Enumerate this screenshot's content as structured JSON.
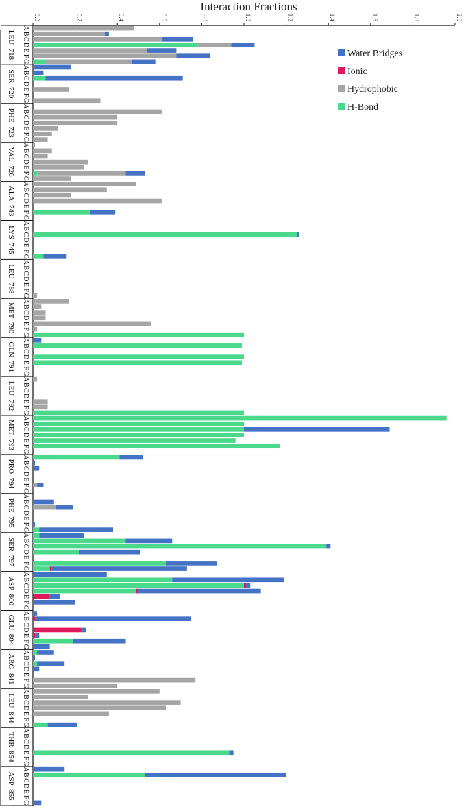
{
  "chart_data": {
    "type": "bar",
    "orientation": "horizontal-stacked",
    "title": "Interaction Fractions",
    "xlim": [
      0,
      2.0
    ],
    "x_ticks": [
      "0.0",
      "0.2",
      "0.4",
      "0.6",
      "0.8",
      "1.0",
      "1.2",
      "1.4",
      "1.6",
      "1.8",
      "2.0"
    ],
    "pose_labels": [
      "A",
      "B",
      "C",
      "D",
      "E",
      "F",
      "G"
    ],
    "legend_placement": "top-right",
    "series": [
      {
        "name": "Water Bridges",
        "color": "#4472c4"
      },
      {
        "name": "Ionic",
        "color": "#e0185c"
      },
      {
        "name": "Hydrophobic",
        "color": "#a5a5a5"
      },
      {
        "name": "H-Bond",
        "color": "#4ad98a"
      }
    ],
    "stack_order": [
      "H-Bond",
      "Ionic",
      "Hydrophobic",
      "Water Bridges"
    ],
    "residues": [
      {
        "name": "LEU_718",
        "bars": [
          {
            "hb": 0,
            "ion": 0,
            "hyd": 0.48,
            "wb": 0
          },
          {
            "hb": 0,
            "ion": 0,
            "hyd": 0.34,
            "wb": 0.02
          },
          {
            "hb": 0,
            "ion": 0,
            "hyd": 0.61,
            "wb": 0.15
          },
          {
            "hb": 0.78,
            "ion": 0,
            "hyd": 0.16,
            "wb": 0.11
          },
          {
            "hb": 0,
            "ion": 0,
            "hyd": 0.54,
            "wb": 0.14
          },
          {
            "hb": 0,
            "ion": 0,
            "hyd": 0.68,
            "wb": 0.16
          },
          {
            "hb": 0.06,
            "ion": 0,
            "hyd": 0.41,
            "wb": 0.11
          }
        ]
      },
      {
        "name": "SER_720",
        "bars": [
          {
            "hb": 0,
            "ion": 0,
            "hyd": 0,
            "wb": 0.18
          },
          {
            "hb": 0,
            "ion": 0,
            "hyd": 0,
            "wb": 0.05
          },
          {
            "hb": 0.06,
            "ion": 0,
            "hyd": 0,
            "wb": 0.65
          },
          {
            "hb": 0,
            "ion": 0,
            "hyd": 0,
            "wb": 0
          },
          {
            "hb": 0,
            "ion": 0,
            "hyd": 0.17,
            "wb": 0
          },
          {
            "hb": 0,
            "ion": 0,
            "hyd": 0,
            "wb": 0
          },
          {
            "hb": 0,
            "ion": 0,
            "hyd": 0.32,
            "wb": 0
          }
        ]
      },
      {
        "name": "PHE_723",
        "bars": [
          {
            "hb": 0,
            "ion": 0,
            "hyd": 0,
            "wb": 0
          },
          {
            "hb": 0,
            "ion": 0,
            "hyd": 0.61,
            "wb": 0
          },
          {
            "hb": 0,
            "ion": 0,
            "hyd": 0.4,
            "wb": 0
          },
          {
            "hb": 0,
            "ion": 0,
            "hyd": 0.4,
            "wb": 0
          },
          {
            "hb": 0,
            "ion": 0,
            "hyd": 0.12,
            "wb": 0
          },
          {
            "hb": 0,
            "ion": 0,
            "hyd": 0.09,
            "wb": 0
          },
          {
            "hb": 0,
            "ion": 0,
            "hyd": 0.07,
            "wb": 0
          }
        ]
      },
      {
        "name": "VAL_726",
        "bars": [
          {
            "hb": 0,
            "ion": 0,
            "hyd": 0.01,
            "wb": 0
          },
          {
            "hb": 0,
            "ion": 0,
            "hyd": 0.09,
            "wb": 0
          },
          {
            "hb": 0,
            "ion": 0,
            "hyd": 0.07,
            "wb": 0
          },
          {
            "hb": 0,
            "ion": 0,
            "hyd": 0.26,
            "wb": 0
          },
          {
            "hb": 0,
            "ion": 0,
            "hyd": 0.24,
            "wb": 0
          },
          {
            "hb": 0.02,
            "ion": 0,
            "hyd": 0.42,
            "wb": 0.09
          },
          {
            "hb": 0,
            "ion": 0,
            "hyd": 0.18,
            "wb": 0
          }
        ]
      },
      {
        "name": "ALA_743",
        "bars": [
          {
            "hb": 0,
            "ion": 0,
            "hyd": 0.49,
            "wb": 0
          },
          {
            "hb": 0,
            "ion": 0,
            "hyd": 0.35,
            "wb": 0
          },
          {
            "hb": 0,
            "ion": 0,
            "hyd": 0.18,
            "wb": 0
          },
          {
            "hb": 0,
            "ion": 0,
            "hyd": 0.61,
            "wb": 0
          },
          {
            "hb": 0,
            "ion": 0,
            "hyd": 0,
            "wb": 0
          },
          {
            "hb": 0.27,
            "ion": 0,
            "hyd": 0,
            "wb": 0.12
          },
          {
            "hb": 0,
            "ion": 0,
            "hyd": 0,
            "wb": 0
          }
        ]
      },
      {
        "name": "LYS_745",
        "bars": [
          {
            "hb": 0,
            "ion": 0,
            "hyd": 0,
            "wb": 0
          },
          {
            "hb": 0,
            "ion": 0,
            "hyd": 0,
            "wb": 0
          },
          {
            "hb": 1.25,
            "ion": 0,
            "hyd": 0,
            "wb": 0.01
          },
          {
            "hb": 0,
            "ion": 0,
            "hyd": 0,
            "wb": 0
          },
          {
            "hb": 0,
            "ion": 0,
            "hyd": 0,
            "wb": 0
          },
          {
            "hb": 0,
            "ion": 0,
            "hyd": 0,
            "wb": 0
          },
          {
            "hb": 0.05,
            "ion": 0,
            "hyd": 0,
            "wb": 0.11
          }
        ]
      },
      {
        "name": "LEU_788",
        "bars": [
          {
            "hb": 0,
            "ion": 0,
            "hyd": 0,
            "wb": 0
          },
          {
            "hb": 0,
            "ion": 0,
            "hyd": 0,
            "wb": 0
          },
          {
            "hb": 0,
            "ion": 0,
            "hyd": 0,
            "wb": 0
          },
          {
            "hb": 0,
            "ion": 0,
            "hyd": 0,
            "wb": 0
          },
          {
            "hb": 0,
            "ion": 0,
            "hyd": 0,
            "wb": 0
          },
          {
            "hb": 0,
            "ion": 0,
            "hyd": 0,
            "wb": 0
          },
          {
            "hb": 0,
            "ion": 0,
            "hyd": 0.02,
            "wb": 0
          }
        ]
      },
      {
        "name": "MET_790",
        "bars": [
          {
            "hb": 0,
            "ion": 0,
            "hyd": 0.17,
            "wb": 0
          },
          {
            "hb": 0,
            "ion": 0,
            "hyd": 0.04,
            "wb": 0
          },
          {
            "hb": 0,
            "ion": 0,
            "hyd": 0.06,
            "wb": 0
          },
          {
            "hb": 0,
            "ion": 0,
            "hyd": 0.06,
            "wb": 0
          },
          {
            "hb": 0,
            "ion": 0,
            "hyd": 0.56,
            "wb": 0
          },
          {
            "hb": 0,
            "ion": 0,
            "hyd": 0.02,
            "wb": 0
          },
          {
            "hb": 1.0,
            "ion": 0,
            "hyd": 0,
            "wb": 0
          }
        ]
      },
      {
        "name": "GLN_791",
        "bars": [
          {
            "hb": 0,
            "ion": 0,
            "hyd": 0,
            "wb": 0.04
          },
          {
            "hb": 0.99,
            "ion": 0,
            "hyd": 0,
            "wb": 0
          },
          {
            "hb": 0,
            "ion": 0,
            "hyd": 0,
            "wb": 0
          },
          {
            "hb": 1.0,
            "ion": 0,
            "hyd": 0,
            "wb": 0
          },
          {
            "hb": 0.99,
            "ion": 0,
            "hyd": 0,
            "wb": 0
          },
          {
            "hb": 0,
            "ion": 0,
            "hyd": 0,
            "wb": 0
          },
          {
            "hb": 0,
            "ion": 0,
            "hyd": 0,
            "wb": 0
          }
        ]
      },
      {
        "name": "LEU_792",
        "bars": [
          {
            "hb": 0,
            "ion": 0,
            "hyd": 0.02,
            "wb": 0
          },
          {
            "hb": 0,
            "ion": 0,
            "hyd": 0,
            "wb": 0
          },
          {
            "hb": 0,
            "ion": 0,
            "hyd": 0,
            "wb": 0
          },
          {
            "hb": 0,
            "ion": 0,
            "hyd": 0,
            "wb": 0
          },
          {
            "hb": 0,
            "ion": 0,
            "hyd": 0.07,
            "wb": 0
          },
          {
            "hb": 0,
            "ion": 0,
            "hyd": 0.07,
            "wb": 0
          },
          {
            "hb": 1.0,
            "ion": 0,
            "hyd": 0,
            "wb": 0
          }
        ]
      },
      {
        "name": "MET_793",
        "bars": [
          {
            "hb": 1.96,
            "ion": 0,
            "hyd": 0,
            "wb": 0
          },
          {
            "hb": 1.0,
            "ion": 0,
            "hyd": 0,
            "wb": 0
          },
          {
            "hb": 1.0,
            "ion": 0,
            "hyd": 0,
            "wb": 0.69
          },
          {
            "hb": 1.0,
            "ion": 0,
            "hyd": 0,
            "wb": 0
          },
          {
            "hb": 0.96,
            "ion": 0,
            "hyd": 0,
            "wb": 0
          },
          {
            "hb": 1.17,
            "ion": 0,
            "hyd": 0,
            "wb": 0
          },
          {
            "hb": 0,
            "ion": 0,
            "hyd": 0,
            "wb": 0
          }
        ]
      },
      {
        "name": "PRO_794",
        "bars": [
          {
            "hb": 0.41,
            "ion": 0,
            "hyd": 0,
            "wb": 0.11
          },
          {
            "hb": 0,
            "ion": 0,
            "hyd": 0,
            "wb": 0.01
          },
          {
            "hb": 0,
            "ion": 0,
            "hyd": 0,
            "wb": 0.03
          },
          {
            "hb": 0,
            "ion": 0,
            "hyd": 0,
            "wb": 0
          },
          {
            "hb": 0,
            "ion": 0,
            "hyd": 0,
            "wb": 0
          },
          {
            "hb": 0,
            "ion": 0,
            "hyd": 0.02,
            "wb": 0.03
          },
          {
            "hb": 0,
            "ion": 0,
            "hyd": 0,
            "wb": 0
          }
        ]
      },
      {
        "name": "PHE_795",
        "bars": [
          {
            "hb": 0,
            "ion": 0,
            "hyd": 0,
            "wb": 0
          },
          {
            "hb": 0,
            "ion": 0,
            "hyd": 0,
            "wb": 0.1
          },
          {
            "hb": 0,
            "ion": 0,
            "hyd": 0.11,
            "wb": 0.08
          },
          {
            "hb": 0,
            "ion": 0,
            "hyd": 0,
            "wb": 0
          },
          {
            "hb": 0,
            "ion": 0,
            "hyd": 0,
            "wb": 0
          },
          {
            "hb": 0,
            "ion": 0,
            "hyd": 0,
            "wb": 0.01
          },
          {
            "hb": 0.03,
            "ion": 0,
            "hyd": 0,
            "wb": 0.35
          }
        ]
      },
      {
        "name": "SER_797",
        "bars": [
          {
            "hb": 0.03,
            "ion": 0,
            "hyd": 0,
            "wb": 0.21
          },
          {
            "hb": 0.44,
            "ion": 0,
            "hyd": 0,
            "wb": 0.22
          },
          {
            "hb": 1.39,
            "ion": 0,
            "hyd": 0,
            "wb": 0.02
          },
          {
            "hb": 0.22,
            "ion": 0,
            "hyd": 0,
            "wb": 0.29
          },
          {
            "hb": 0,
            "ion": 0,
            "hyd": 0,
            "wb": 0
          },
          {
            "hb": 0.63,
            "ion": 0,
            "hyd": 0,
            "wb": 0.24
          },
          {
            "hb": 0.08,
            "ion": 0.01,
            "hyd": 0,
            "wb": 0.64
          }
        ]
      },
      {
        "name": "ASP_800",
        "bars": [
          {
            "hb": 0,
            "ion": 0,
            "hyd": 0,
            "wb": 0.35
          },
          {
            "hb": 0.66,
            "ion": 0,
            "hyd": 0,
            "wb": 0.53
          },
          {
            "hb": 1.0,
            "ion": 0.01,
            "hyd": 0,
            "wb": 0.02
          },
          {
            "hb": 0.49,
            "ion": 0.01,
            "hyd": 0,
            "wb": 0.58
          },
          {
            "hb": 0,
            "ion": 0.08,
            "hyd": 0,
            "wb": 0.05
          },
          {
            "hb": 0,
            "ion": 0,
            "hyd": 0,
            "wb": 0.2
          },
          {
            "hb": 0,
            "ion": 0,
            "hyd": 0,
            "wb": 0
          }
        ]
      },
      {
        "name": "GLU_804",
        "bars": [
          {
            "hb": 0,
            "ion": 0,
            "hyd": 0,
            "wb": 0.02
          },
          {
            "hb": 0,
            "ion": 0.01,
            "hyd": 0,
            "wb": 0.74
          },
          {
            "hb": 0,
            "ion": 0,
            "hyd": 0,
            "wb": 0
          },
          {
            "hb": 0,
            "ion": 0.23,
            "hyd": 0,
            "wb": 0.02
          },
          {
            "hb": 0,
            "ion": 0.01,
            "hyd": 0,
            "wb": 0.02
          },
          {
            "hb": 0.19,
            "ion": 0,
            "hyd": 0,
            "wb": 0.25
          },
          {
            "hb": 0,
            "ion": 0,
            "hyd": 0,
            "wb": 0.08
          }
        ]
      },
      {
        "name": "ARG_841",
        "bars": [
          {
            "hb": 0.02,
            "ion": 0,
            "hyd": 0,
            "wb": 0.08
          },
          {
            "hb": 0,
            "ion": 0,
            "hyd": 0,
            "wb": 0.01
          },
          {
            "hb": 0.02,
            "ion": 0,
            "hyd": 0,
            "wb": 0.13
          },
          {
            "hb": 0,
            "ion": 0,
            "hyd": 0,
            "wb": 0.03
          },
          {
            "hb": 0,
            "ion": 0,
            "hyd": 0,
            "wb": 0
          },
          {
            "hb": 0,
            "ion": 0,
            "hyd": 0.77,
            "wb": 0
          },
          {
            "hb": 0,
            "ion": 0,
            "hyd": 0.4,
            "wb": 0
          }
        ]
      },
      {
        "name": "LEU_844",
        "bars": [
          {
            "hb": 0,
            "ion": 0,
            "hyd": 0.6,
            "wb": 0
          },
          {
            "hb": 0,
            "ion": 0,
            "hyd": 0.26,
            "wb": 0
          },
          {
            "hb": 0,
            "ion": 0,
            "hyd": 0.7,
            "wb": 0
          },
          {
            "hb": 0,
            "ion": 0,
            "hyd": 0.63,
            "wb": 0
          },
          {
            "hb": 0,
            "ion": 0,
            "hyd": 0.36,
            "wb": 0
          },
          {
            "hb": 0,
            "ion": 0,
            "hyd": 0,
            "wb": 0
          },
          {
            "hb": 0.07,
            "ion": 0,
            "hyd": 0,
            "wb": 0.14
          }
        ]
      },
      {
        "name": "THR_854",
        "bars": [
          {
            "hb": 0,
            "ion": 0,
            "hyd": 0,
            "wb": 0
          },
          {
            "hb": 0,
            "ion": 0,
            "hyd": 0,
            "wb": 0
          },
          {
            "hb": 0,
            "ion": 0,
            "hyd": 0,
            "wb": 0
          },
          {
            "hb": 0,
            "ion": 0,
            "hyd": 0,
            "wb": 0
          },
          {
            "hb": 0.93,
            "ion": 0,
            "hyd": 0,
            "wb": 0.02
          },
          {
            "hb": 0,
            "ion": 0,
            "hyd": 0,
            "wb": 0
          },
          {
            "hb": 0,
            "ion": 0,
            "hyd": 0,
            "wb": 0
          }
        ]
      },
      {
        "name": "ASP_855",
        "bars": [
          {
            "hb": 0,
            "ion": 0,
            "hyd": 0,
            "wb": 0.15
          },
          {
            "hb": 0.53,
            "ion": 0,
            "hyd": 0,
            "wb": 0.67
          },
          {
            "hb": 0,
            "ion": 0,
            "hyd": 0,
            "wb": 0
          },
          {
            "hb": 0,
            "ion": 0,
            "hyd": 0,
            "wb": 0
          },
          {
            "hb": 0,
            "ion": 0,
            "hyd": 0,
            "wb": 0
          },
          {
            "hb": 0,
            "ion": 0,
            "hyd": 0,
            "wb": 0
          },
          {
            "hb": 0,
            "ion": 0,
            "hyd": 0,
            "wb": 0.04
          }
        ]
      }
    ]
  }
}
